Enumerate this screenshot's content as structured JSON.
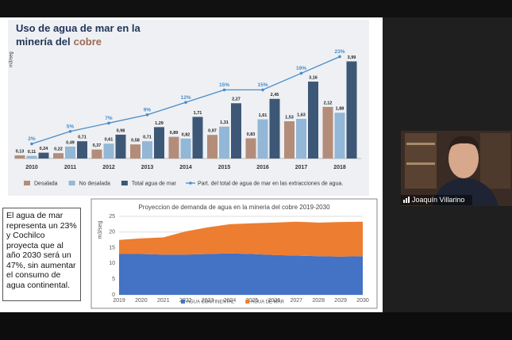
{
  "chart_data": [
    {
      "type": "bar-line",
      "title": [
        "Uso de agua de mar en la",
        "minería del",
        "cobre"
      ],
      "y_label": "m3/seg",
      "categories": [
        "2010",
        "2011",
        "2012",
        "2013",
        "2014",
        "2015",
        "2016",
        "2017",
        "2018"
      ],
      "ylim": [
        0,
        4.2
      ],
      "y2lim": [
        0,
        25
      ],
      "series": [
        {
          "name": "Desalada",
          "color": "#b38d7a",
          "values": [
            0.13,
            0.22,
            0.37,
            0.58,
            0.89,
            0.97,
            0.83,
            1.53,
            2.12
          ],
          "value_labels": [
            "0,13",
            "0,22",
            "0,37",
            "0,58",
            "0,89",
            "0,97",
            "0,83",
            "1,53",
            "2,12"
          ]
        },
        {
          "name": "No desalada",
          "color": "#93b7d6",
          "values": [
            0.11,
            0.49,
            0.61,
            0.71,
            0.82,
            1.31,
            1.61,
            1.63,
            1.88
          ],
          "value_labels": [
            "0,11",
            "0,49",
            "0,61",
            "0,71",
            "0,82",
            "1,31",
            "1,61",
            "1,63",
            "1,88"
          ]
        },
        {
          "name": "Total agua de mar",
          "color": "#3d5877",
          "values": [
            0.24,
            0.71,
            0.98,
            1.29,
            1.71,
            2.27,
            2.45,
            3.16,
            3.99
          ],
          "value_labels": [
            "0,24",
            "0,71",
            "0,98",
            "1,29",
            "1,71",
            "2,27",
            "2,45",
            "3,16",
            "3,99"
          ]
        },
        {
          "name": "Part. del total de agua de mar en las extracciones de agua.",
          "color": "#4a8cc8",
          "axis": "y2",
          "line": true,
          "values": [
            2,
            5,
            7,
            9,
            12,
            15,
            15,
            19,
            23
          ],
          "value_labels": [
            "2%",
            "5%",
            "7%",
            "9%",
            "12%",
            "15%",
            "15%",
            "19%",
            "23%"
          ]
        }
      ]
    },
    {
      "type": "stacked-area",
      "title": "Proyeccion de demanda de agua en la mineria del cobre 2019-2030",
      "y_label": "m3/seg",
      "x": [
        2019,
        2020,
        2021,
        2022,
        2023,
        2024,
        2025,
        2026,
        2027,
        2028,
        2029,
        2030
      ],
      "xlim": [
        2019,
        2030
      ],
      "xticks": [
        2019,
        2020,
        2021,
        2022,
        2023,
        2024,
        2025,
        2026,
        2027,
        2028,
        2029,
        2030
      ],
      "ylim": [
        0,
        25
      ],
      "yticks": [
        0,
        5,
        10,
        15,
        20,
        25
      ],
      "grid": true,
      "series": [
        {
          "name": "AGUA CONTINENTAL",
          "color": "#4472c4",
          "values": [
            13,
            13,
            12.8,
            12.8,
            13,
            13.2,
            13,
            12.7,
            12.5,
            12.3,
            12.2,
            12.3
          ]
        },
        {
          "name": "AGUA DE MAR",
          "color": "#ed7d31",
          "values": [
            4.5,
            5,
            5.5,
            7.4,
            8.5,
            9.3,
            9.8,
            10.3,
            10.8,
            10.7,
            11,
            11
          ]
        }
      ]
    }
  ],
  "text_box": "El agua de mar representa un 23% y Cochilco proyecta que al año 2030 será un 47%, sin aumentar el consumo de agua continental.",
  "participant": "Joaquín Villarino"
}
